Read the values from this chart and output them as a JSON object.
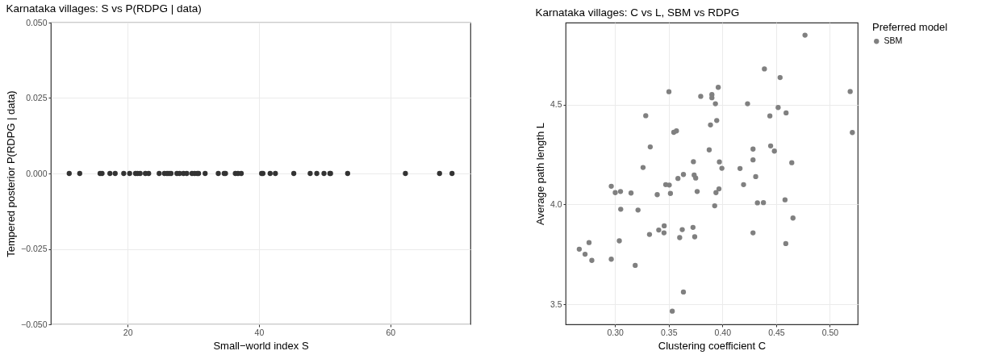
{
  "chart_data": [
    {
      "type": "scatter",
      "title": "Karnataka villages: S vs P(RDPG | data)",
      "xlabel": "Small−world index S",
      "ylabel": "Tempered posterior P(RDPG | data)",
      "x": [
        11.1,
        12.7,
        15.8,
        16.1,
        17.3,
        18.1,
        19.4,
        20.3,
        21.2,
        21.5,
        21.9,
        22.7,
        23.2,
        24.8,
        25.6,
        26.0,
        26.3,
        26.6,
        27.5,
        27.9,
        28.5,
        29.0,
        29.8,
        30.2,
        30.6,
        30.8,
        31.8,
        33.8,
        34.7,
        34.9,
        36.4,
        36.8,
        37.3,
        40.4,
        40.6,
        41.7,
        42.5,
        45.3,
        47.8,
        48.8,
        49.9,
        50.8,
        50.9,
        53.5,
        62.3,
        67.5,
        69.4
      ],
      "series": [
        {
          "color": "#333333",
          "values": [
            0,
            0,
            0,
            0,
            0,
            0,
            0,
            0,
            0,
            0,
            0,
            0,
            0,
            0,
            0,
            0,
            0,
            0,
            0,
            0,
            0,
            0,
            0,
            0,
            0,
            0,
            0,
            0,
            0,
            0,
            0,
            0,
            0,
            0,
            0,
            0,
            0,
            0,
            0,
            0,
            0,
            0,
            0,
            0,
            0,
            0,
            0
          ]
        }
      ],
      "xlim": [
        8.3,
        72.2
      ],
      "ylim": [
        -0.05,
        0.05
      ],
      "xticks": [
        20,
        40,
        60
      ],
      "yticks": [
        {
          "value": -0.05,
          "label": "−0.050"
        },
        {
          "value": -0.025,
          "label": "−0.025"
        },
        {
          "value": 0,
          "label": "0.000"
        },
        {
          "value": 0.025,
          "label": "0.025"
        },
        {
          "value": 0.05,
          "label": "0.050"
        }
      ],
      "grid": true,
      "marker": "circle"
    },
    {
      "type": "scatter",
      "title": "Karnataka villages: C vs L, SBM vs RDPG",
      "xlabel": "Clustering coefficient C",
      "ylabel": "Average path length L",
      "legend_title": "Preferred model",
      "x": [
        0.3502,
        0.3798,
        0.3902,
        0.3902,
        0.3286,
        0.3547,
        0.3572,
        0.3889,
        0.3328,
        0.3877,
        0.373,
        0.3261,
        0.2965,
        0.3002,
        0.3051,
        0.3149,
        0.3053,
        0.3214,
        0.3393,
        0.3472,
        0.3505,
        0.3516,
        0.3586,
        0.3637,
        0.3737,
        0.3751,
        0.3765,
        0.394,
        0.3968,
        0.3928,
        0.3458,
        0.3407,
        0.3321,
        0.3456,
        0.3626,
        0.3726,
        0.3602,
        0.3742,
        0.304,
        0.2667,
        0.2758,
        0.2721,
        0.2784,
        0.2965,
        0.3188,
        0.3637,
        0.3533,
        0.4769,
        0.4391,
        0.4537,
        0.3961,
        0.519,
        0.3935,
        0.4234,
        0.4519,
        0.4442,
        0.4593,
        0.3947,
        0.4285,
        0.4449,
        0.4484,
        0.3972,
        0.4646,
        0.4285,
        0.3995,
        0.4164,
        0.431,
        0.4197,
        0.4326,
        0.4382,
        0.4583,
        0.4657,
        0.4285,
        0.459,
        0.521
      ],
      "series": [
        {
          "name": "SBM",
          "color": "#808080",
          "values": [
            4.564,
            4.541,
            4.55,
            4.534,
            4.444,
            4.361,
            4.368,
            4.398,
            4.288,
            4.273,
            4.214,
            4.185,
            4.091,
            4.059,
            4.065,
            4.057,
            3.976,
            3.972,
            4.049,
            4.099,
            4.097,
            4.055,
            4.13,
            4.15,
            4.147,
            4.132,
            4.065,
            4.059,
            4.078,
            3.993,
            3.893,
            3.872,
            3.85,
            3.858,
            3.874,
            3.885,
            3.834,
            3.838,
            3.818,
            3.776,
            3.809,
            3.751,
            3.72,
            3.726,
            3.695,
            3.562,
            3.466,
            4.847,
            4.678,
            4.635,
            4.586,
            4.565,
            4.504,
            4.504,
            4.485,
            4.443,
            4.458,
            4.42,
            4.277,
            4.293,
            4.267,
            4.213,
            4.209,
            4.223,
            4.181,
            4.18,
            4.139,
            4.099,
            4.008,
            4.009,
            4.023,
            3.932,
            3.858,
            3.804,
            4.36
          ]
        }
      ],
      "xlim": [
        0.254,
        0.526
      ],
      "ylim": [
        3.4,
        4.91
      ],
      "xticks": [
        {
          "value": 0.3,
          "label": "0.30"
        },
        {
          "value": 0.35,
          "label": "0.35"
        },
        {
          "value": 0.4,
          "label": "0.40"
        },
        {
          "value": 0.45,
          "label": "0.45"
        },
        {
          "value": 0.5,
          "label": "0.50"
        }
      ],
      "yticks": [
        3.5,
        {
          "value": 4,
          "label": "4.0"
        },
        4.5
      ],
      "grid": true,
      "marker": "circle",
      "legend": "right"
    }
  ]
}
